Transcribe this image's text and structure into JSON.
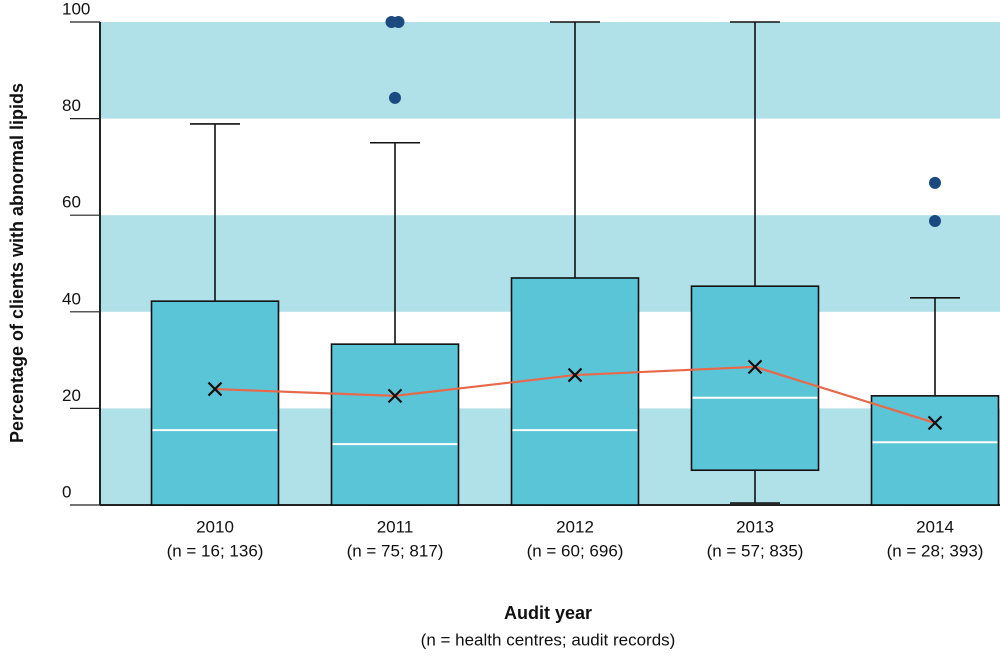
{
  "chart_data": {
    "type": "box",
    "y_label": "Percentage  of clients with abnormal lipids",
    "x_label": "Audit year",
    "x_sublabel": "(n = health centres; audit records)",
    "categories": [
      "2010",
      "2011",
      "2012",
      "2013",
      "2014"
    ],
    "category_sublabels": [
      "(n = 16; 136)",
      "(n = 75; 817)",
      "(n = 60; 696)",
      "(n = 57; 835)",
      "(n = 28; 393)"
    ],
    "ylim": [
      0,
      100
    ],
    "yticks": [
      0,
      20,
      40,
      60,
      80,
      100
    ],
    "box_color": "#5bc5d8",
    "band_color": "#b0e0e8",
    "mean_line_color": "#e8684a",
    "outlier_color": "#1b4a80",
    "boxes": [
      {
        "whisker_low": 0,
        "q1": 0,
        "median": 15.5,
        "q3": 42.2,
        "whisker_high": 78.9,
        "mean": 24.0,
        "outliers": []
      },
      {
        "whisker_low": 0,
        "q1": 0,
        "median": 12.6,
        "q3": 33.3,
        "whisker_high": 75.0,
        "mean": 22.6,
        "outliers": [
          100,
          100,
          84.3
        ]
      },
      {
        "whisker_low": 0,
        "q1": 0,
        "median": 15.5,
        "q3": 47.0,
        "whisker_high": 100,
        "mean": 26.9,
        "outliers": []
      },
      {
        "whisker_low": 0.4,
        "q1": 7.2,
        "median": 22.2,
        "q3": 45.3,
        "whisker_high": 100,
        "mean": 28.6,
        "outliers": []
      },
      {
        "whisker_low": 0,
        "q1": 0,
        "median": 13.0,
        "q3": 22.6,
        "whisker_high": 42.9,
        "mean": 17.0,
        "outliers": [
          66.7,
          58.8
        ]
      }
    ]
  }
}
